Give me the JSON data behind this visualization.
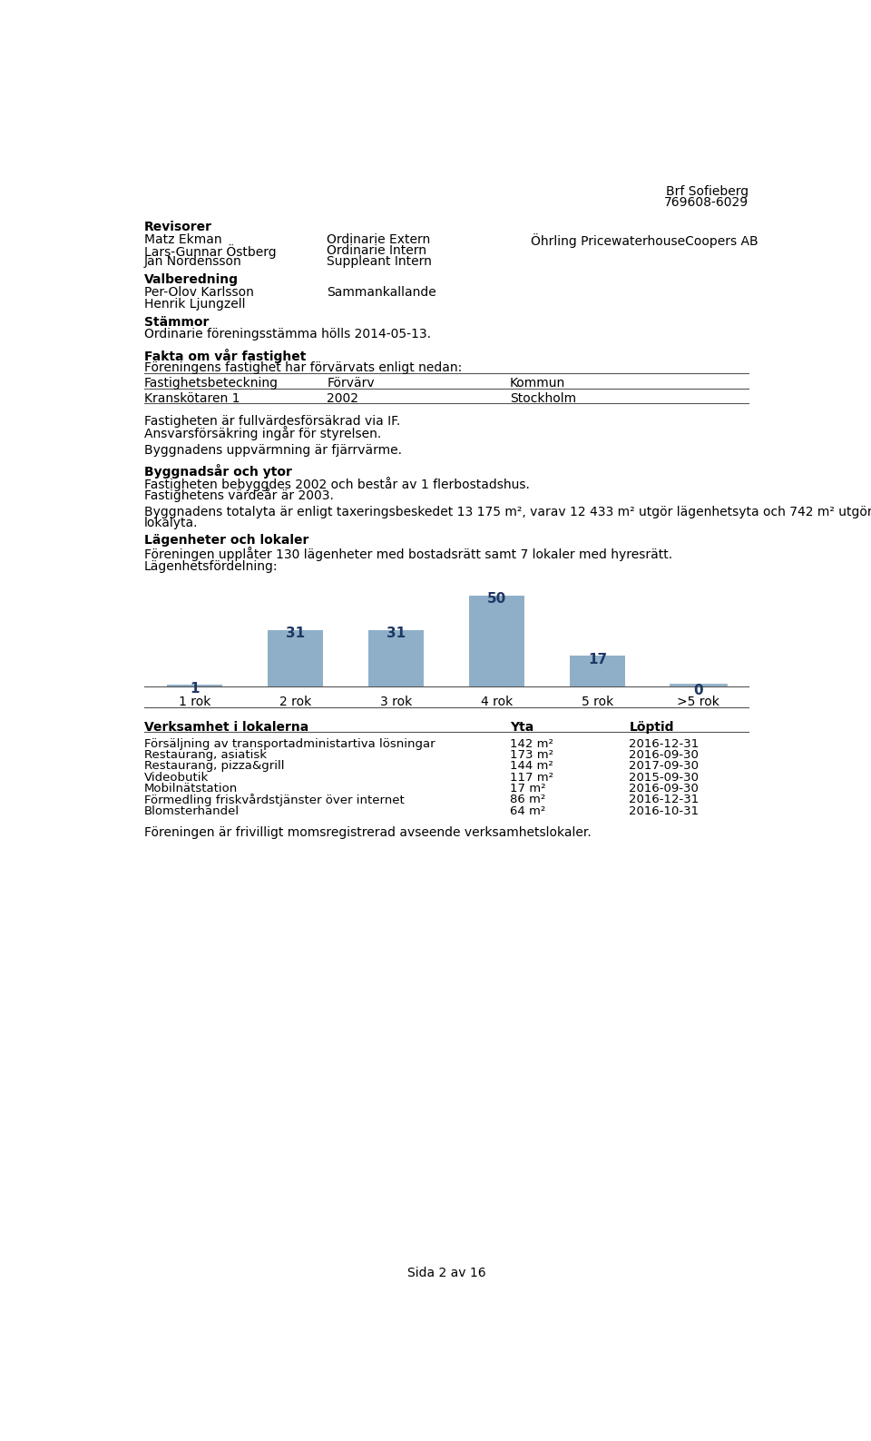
{
  "header_right_line1": "Brf Sofieberg",
  "header_right_line2": "769608-6029",
  "section_revisorer": "Revisorer",
  "revisorer": [
    {
      "name": "Matz Ekman",
      "role": "Ordinarie Extern",
      "firm": "Öhrling PricewaterhouseCoopers AB"
    },
    {
      "name": "Lars-Gunnar Östberg",
      "role": "Ordinarie Intern",
      "firm": ""
    },
    {
      "name": "Jan Nordensson",
      "role": "Suppleant Intern",
      "firm": ""
    }
  ],
  "section_valberedning": "Valberedning",
  "valberedning": [
    {
      "name": "Per-Olov Karlsson",
      "role": "Sammankallande"
    },
    {
      "name": "Henrik Ljungzell",
      "role": ""
    }
  ],
  "section_stammor": "Stämmor",
  "stammor_text": "Ordinarie föreningsstämma hölls 2014-05-13.",
  "section_fakta": "Fakta om vår fastighet",
  "fakta_intro": "Föreningens fastighet har förvärvats enligt nedan:",
  "table_headers": [
    "Fastighetsbeteckning",
    "Förvärv",
    "Kommun"
  ],
  "table_row": [
    "Kranskötaren 1",
    "2002",
    "Stockholm"
  ],
  "fakta_text1": "Fastigheten är fullvärdesförsäkrad via IF.",
  "fakta_text2": "Ansvarsförsäkring ingår för styrelsen.",
  "fakta_text3": "Byggnadens uppvärmning är fjärrvärme.",
  "section_byggnadsaar": "Byggnadsår och ytor",
  "byggnadsaar_text1": "Fastigheten bebyggdes 2002 och består av 1 flerbostadshus.",
  "byggnadsaar_text2": "Fastighetens värdeår är 2003.",
  "byggnadsaar_text3a": "Byggnadens totalyta är enligt taxeringsbeskedet 13 175 m², varav 12 433 m² utgör lägenhetsyta och 742 m² utgör",
  "byggnadsaar_text3b": "lokalyta.",
  "section_lagenheter": "Lägenheter och lokaler",
  "lagenheter_text": "Föreningen upplåter 130 lägenheter med bostadsrätt samt 7 lokaler med hyresrätt.",
  "lagenhetsfordelning_label": "Lägenhetsfördelning:",
  "bar_categories": [
    "1 rok",
    "2 rok",
    "3 rok",
    "4 rok",
    "5 rok",
    ">5 rok"
  ],
  "bar_values": [
    1,
    31,
    31,
    50,
    17,
    0
  ],
  "bar_color": "#8FAFC8",
  "bar_label_color": "#1F3864",
  "section_verksamhet": "Verksamhet i lokalerna",
  "verksamhet_col2": "Yta",
  "verksamhet_col3": "Löptid",
  "verksamhet_rows": [
    [
      "Försäljning av transportadministartiva lösningar",
      "142 m²",
      "2016-12-31"
    ],
    [
      "Restaurang, asiatisk",
      "173 m²",
      "2016-09-30"
    ],
    [
      "Restaurang, pizza&grill",
      "144 m²",
      "2017-09-30"
    ],
    [
      "Videobutik",
      "117 m²",
      "2015-09-30"
    ],
    [
      "Mobilnätstation",
      "17 m²",
      "2016-09-30"
    ],
    [
      "Förmedling friskvårdstjänster över internet",
      "86 m²",
      "2016-12-31"
    ],
    [
      "Blomsterhandel",
      "64 m²",
      "2016-10-31"
    ]
  ],
  "footer_moms": "Föreningen är frivilligt momsregistrerad avseende verksamhetslokaler.",
  "page_label": "Sida 2 av 16",
  "bg_color": "#FFFFFF",
  "text_color": "#000000"
}
